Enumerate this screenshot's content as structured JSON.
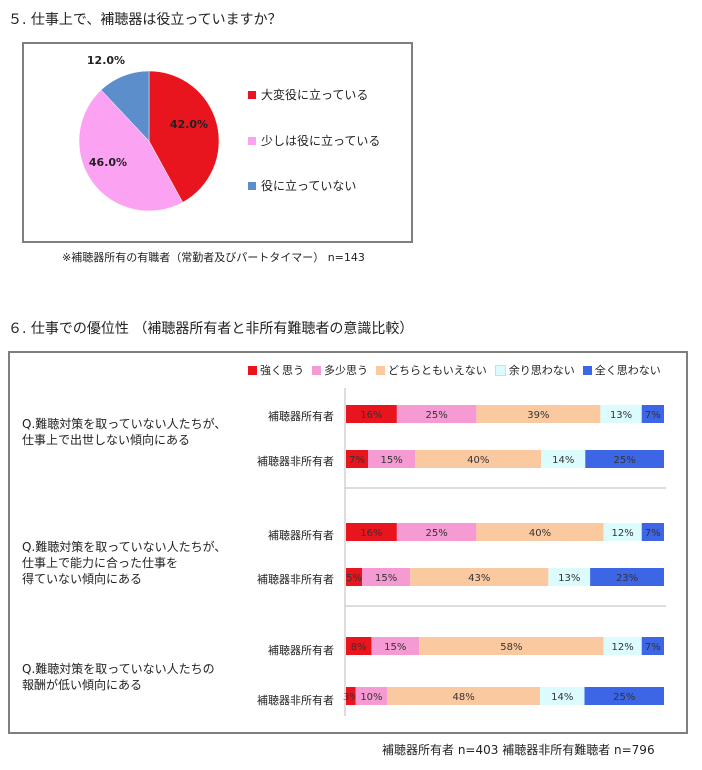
{
  "section5": {
    "heading": "５. 仕事上で、補聴器は役立っていますか？",
    "note": "※補聴器所有の有職者（常勤者及びパートタイマー） n=143"
  },
  "section6": {
    "heading": "６. 仕事での優位性 （補聴器所有者と非所有難聴者の意識比較）",
    "footer": "補聴器所有者 n=403 補聴器非所有難聴者 n=796"
  },
  "colors": {
    "pie": [
      "#e8141e",
      "#fba2f2",
      "#5b8ecb"
    ],
    "bar": [
      "#e8141e",
      "#f59ad2",
      "#fbc9a0",
      "#dcfbfd",
      "#3d66e6"
    ]
  },
  "chart_data": [
    {
      "type": "pie",
      "title": "",
      "labels": [
        "大変役に立っている",
        "少しは役に立っている",
        "役に立っていない"
      ],
      "values": [
        42.0,
        46.0,
        12.0
      ],
      "value_labels": [
        "42.0%",
        "46.0%",
        "12.0%"
      ],
      "legend_position": "right"
    },
    {
      "type": "bar",
      "stacked": true,
      "orientation": "horizontal",
      "legend": [
        "強く思う",
        "多少思う",
        "どちらともいえない",
        "余り思わない",
        "全く思わない"
      ],
      "legend_position": "top",
      "groups": [
        {
          "question": "Q.難聴対策を取っていない人たちが、\n仕事上で出世しない傾向にある",
          "rows": [
            {
              "label": "補聴器所有者",
              "values": [
                16,
                25,
                39,
                13,
                7
              ],
              "value_labels": [
                "16%",
                "25%",
                "39%",
                "13%",
                "7%"
              ]
            },
            {
              "label": "補聴器非所有者",
              "values": [
                7,
                15,
                40,
                14,
                25
              ],
              "value_labels": [
                "7%",
                "15%",
                "40%",
                "14%",
                "25%"
              ]
            }
          ]
        },
        {
          "question": "Q.難聴対策を取っていない人たちが、\n仕事上で能力に合った仕事を\n得ていない傾向にある",
          "rows": [
            {
              "label": "補聴器所有者",
              "values": [
                16,
                25,
                40,
                12,
                7
              ],
              "value_labels": [
                "16%",
                "25%",
                "40%",
                "12%",
                "7%"
              ]
            },
            {
              "label": "補聴器非所有者",
              "values": [
                5,
                15,
                43,
                13,
                23
              ],
              "value_labels": [
                "5%",
                "15%",
                "43%",
                "13%",
                "23%"
              ]
            }
          ]
        },
        {
          "question": "Q.難聴対策を取っていない人たちの\n報酬が低い傾向にある",
          "rows": [
            {
              "label": "補聴器所有者",
              "values": [
                8,
                15,
                58,
                12,
                7
              ],
              "value_labels": [
                "8%",
                "15%",
                "58%",
                "12%",
                "7%"
              ]
            },
            {
              "label": "補聴器非所有者",
              "values": [
                3,
                10,
                48,
                14,
                25
              ],
              "value_labels": [
                "3%",
                "10%",
                "48%",
                "14%",
                "25%"
              ]
            }
          ]
        }
      ]
    }
  ]
}
